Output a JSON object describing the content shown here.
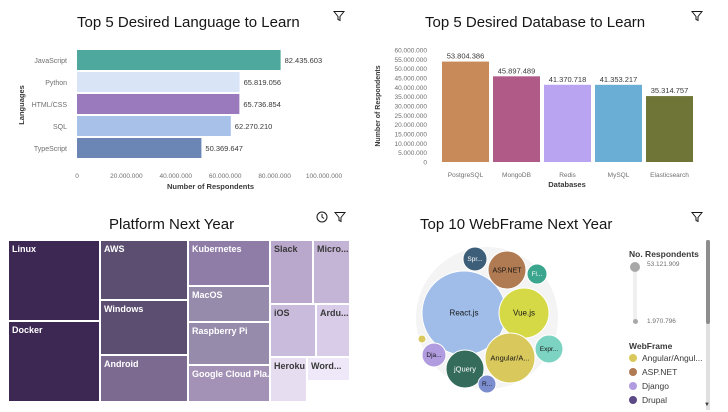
{
  "tiles": {
    "lang": {
      "title": "Top 5 Desired Language to Learn"
    },
    "db": {
      "title": "Top 5 Desired Database to Learn"
    },
    "platform": {
      "title": "Platform Next Year"
    },
    "webframe": {
      "title": "Top 10 WebFrame Next Year"
    }
  },
  "chart_data": [
    {
      "type": "bar",
      "orientation": "horizontal",
      "title": "Top 5 Desired Language to Learn",
      "xlabel": "Number of Respondents",
      "ylabel": "Languages",
      "categories": [
        "JavaScript",
        "Python",
        "HTML/CSS",
        "SQL",
        "TypeScript"
      ],
      "values": [
        82435603,
        65819056,
        65736854,
        62270210,
        50369647
      ],
      "value_labels": [
        "82.435.603",
        "65.819.056",
        "65.736.854",
        "62.270.210",
        "50.369.647"
      ],
      "colors": [
        "#4fa89d",
        "#d9e4f7",
        "#9b79bd",
        "#a8c1e8",
        "#6b86b4"
      ],
      "xlim": [
        0,
        100000000
      ],
      "xticks": [
        "0",
        "20.000.000",
        "40.000.000",
        "60.000.000",
        "80.000.000",
        "100.000.000"
      ],
      "grid": false
    },
    {
      "type": "bar",
      "orientation": "vertical",
      "title": "Top 5 Desired Database to Learn",
      "xlabel": "Databases",
      "ylabel": "Number of Respondents",
      "categories": [
        "PostgreSQL",
        "MongoDB",
        "Redis",
        "MySQL",
        "Elasticsearch"
      ],
      "values": [
        53804386,
        45897489,
        41370718,
        41353217,
        35314757
      ],
      "value_labels": [
        "53.804.386",
        "45.897.489",
        "41.370.718",
        "41.353.217",
        "35.314.757"
      ],
      "colors": [
        "#c98a5a",
        "#b05a88",
        "#b8a4f0",
        "#6aaed6",
        "#6e7536"
      ],
      "ylim": [
        0,
        60000000
      ],
      "yticks": [
        "0",
        "5.000.000",
        "10.000.000",
        "15.000.000",
        "20.000.000",
        "25.000.000",
        "30.000.000",
        "35.000.000",
        "40.000.000",
        "45.000.000",
        "50.000.000",
        "55.000.000",
        "60.000.000"
      ],
      "grid": false
    },
    {
      "type": "heatmap",
      "subtype": "treemap",
      "title": "Platform Next Year",
      "labels": [
        "Linux",
        "Docker",
        "AWS",
        "Windows",
        "Android",
        "Kubernetes",
        "MacOS",
        "Raspberry Pi",
        "Google Cloud Pla...",
        "Slack",
        "Micro...",
        "iOS",
        "Ardu...",
        "Heroku",
        "Word..."
      ],
      "colors": [
        "#3d2753",
        "#3d2753",
        "#5b4e70",
        "#5b4e70",
        "#7d6a91",
        "#8f7da8",
        "#978bac",
        "#978bac",
        "#a392b6",
        "#b9a7cc",
        "#c4b4d6",
        "#c9bbdb",
        "#d8cce8",
        "#e6ddf1",
        "#efe8f8"
      ]
    },
    {
      "type": "scatter",
      "subtype": "packed-bubble",
      "title": "Top 10 WebFrame Next Year",
      "labels": [
        "React.js",
        "Vue.js",
        "Angular/A...",
        "jQuery",
        "ASP.NET",
        "Spr...",
        "Fl...",
        "Expr...",
        "Dja...",
        "R..."
      ],
      "colors": [
        "#9fbde8",
        "#d6d946",
        "#d9c95c",
        "#356b5a",
        "#b07a52",
        "#3d5e78",
        "#3ba58e",
        "#7dd3c2",
        "#b29ce0",
        "#7b8dcf"
      ]
    }
  ],
  "legend": {
    "size_title": "No. Respondents",
    "size_max": "53.121.909",
    "size_min": "1.970.796",
    "color_title": "WebFrame",
    "items": [
      {
        "label": "Angular/Angul...",
        "color": "#d9c95c"
      },
      {
        "label": "ASP.NET",
        "color": "#b07a52"
      },
      {
        "label": "Django",
        "color": "#b29ce0"
      },
      {
        "label": "Drupal",
        "color": "#5b4a85"
      }
    ]
  }
}
